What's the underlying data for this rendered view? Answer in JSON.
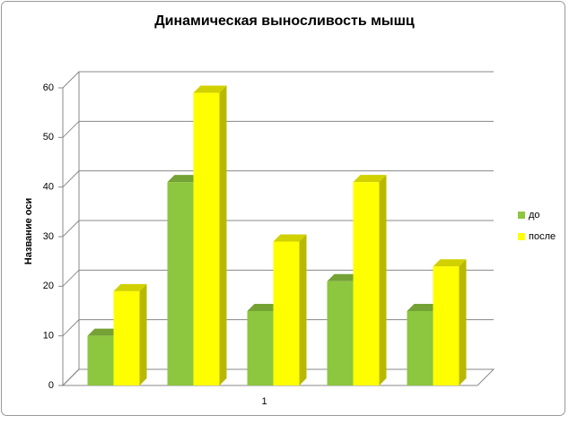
{
  "chart_data": {
    "type": "bar3d",
    "title": "Динамическая выносливость мышц",
    "y_label": "Название оси",
    "categories": [
      null,
      null,
      "1",
      null,
      null
    ],
    "series": [
      {
        "name": "до",
        "color": "#8dc63f",
        "values": [
          10,
          41,
          15,
          21,
          15
        ]
      },
      {
        "name": "после",
        "color": "#ffff00",
        "values": [
          19,
          59,
          29,
          41,
          24
        ]
      }
    ],
    "ylim": [
      0,
      60
    ],
    "yticks": [
      0,
      10,
      20,
      30,
      40,
      50,
      60
    ],
    "grid": true,
    "legend": "right"
  }
}
